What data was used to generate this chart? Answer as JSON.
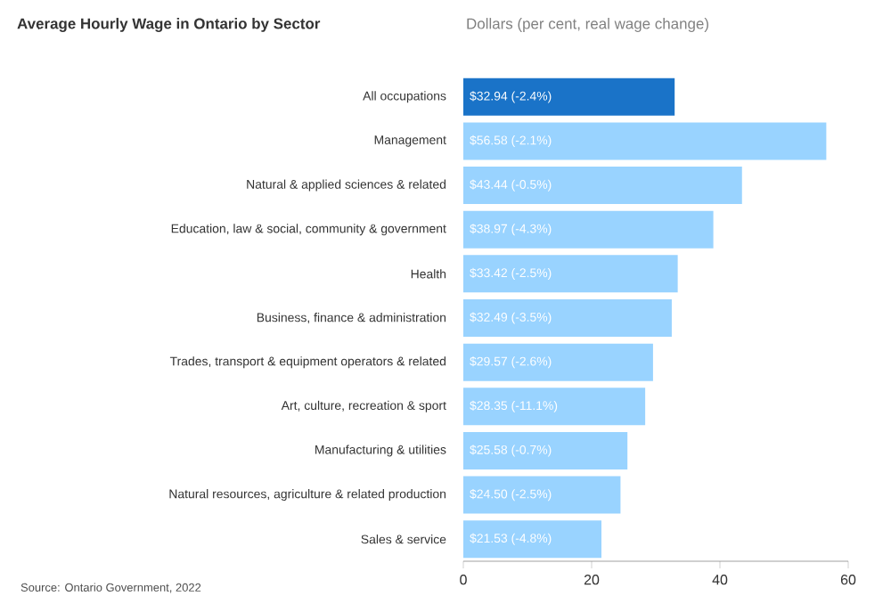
{
  "chart_data": {
    "type": "bar",
    "orientation": "horizontal",
    "title": "Average Hourly Wage in Ontario by Sector",
    "subtitle": "Dollars (per cent, real wage change)",
    "categories": [
      "All occupations",
      "Management",
      "Natural & applied sciences & related",
      "Education, law & social, community & government",
      "Health",
      "Business, finance & administration",
      "Trades, transport & equipment operators & related",
      "Art, culture, recreation & sport",
      "Manufacturing & utilities",
      "Natural resources, agriculture & related production",
      "Sales & service"
    ],
    "values": [
      32.94,
      56.58,
      43.44,
      38.97,
      33.42,
      32.49,
      29.57,
      28.35,
      25.58,
      24.5,
      21.53
    ],
    "value_labels": [
      "$32.94 (-2.4%)",
      "$56.58 (-2.1%)",
      "$43.44 (-0.5%)",
      "$38.97 (-4.3%)",
      "$33.42 (-2.5%)",
      "$32.49 (-3.5%)",
      "$29.57 (-2.6%)",
      "$28.35 (-11.1%)",
      "$25.58 (-0.7%)",
      "$24.50 (-2.5%)",
      "$21.53 (-4.8%)"
    ],
    "colors": [
      "#1a73c8",
      "#99d3ff",
      "#99d3ff",
      "#99d3ff",
      "#99d3ff",
      "#99d3ff",
      "#99d3ff",
      "#99d3ff",
      "#99d3ff",
      "#99d3ff",
      "#99d3ff"
    ],
    "xlim": [
      0,
      60
    ],
    "xticks": [
      0,
      20,
      40,
      60
    ],
    "annotations": [
      "Source: Ontario Government, 2022"
    ]
  }
}
